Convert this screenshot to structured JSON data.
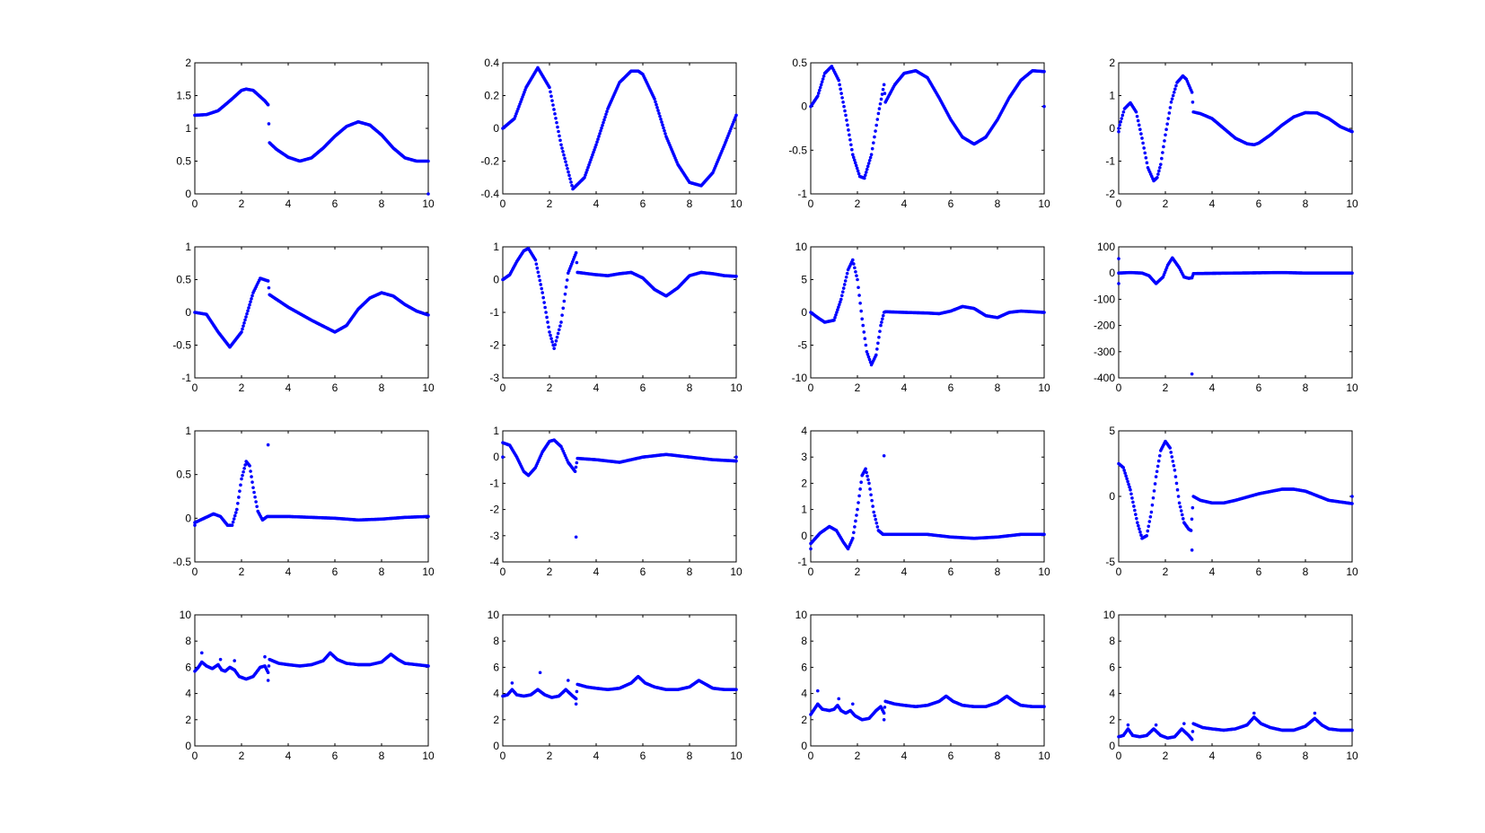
{
  "figure": {
    "marker_color": "#0000ff",
    "axes_color": "#000000",
    "background": "#ffffff"
  },
  "chart_data": [
    {
      "type": "scatter",
      "subplot": [
        1,
        1
      ],
      "xlim": [
        0,
        10
      ],
      "ylim": [
        0,
        2
      ],
      "xticks": [
        "0",
        "2",
        "4",
        "6",
        "8",
        "10"
      ],
      "yticks": [
        "0",
        "0.5",
        "1",
        "1.5",
        "2"
      ],
      "x": [
        0,
        0.5,
        1,
        1.5,
        2,
        2.2,
        2.5,
        3,
        3.14,
        3.2,
        3.5,
        4,
        4.5,
        5,
        5.5,
        6,
        6.5,
        7,
        7.5,
        8,
        8.5,
        9,
        9.5,
        10
      ],
      "y": [
        1.2,
        1.21,
        1.27,
        1.42,
        1.58,
        1.6,
        1.58,
        1.42,
        1.36,
        0.78,
        0.68,
        0.56,
        0.5,
        0.55,
        0.7,
        0.88,
        1.03,
        1.1,
        1.05,
        0.9,
        0.7,
        0.55,
        0.5,
        0.5
      ],
      "outliers": [
        [
          10,
          0
        ]
      ]
    },
    {
      "type": "scatter",
      "subplot": [
        1,
        2
      ],
      "xlim": [
        0,
        10
      ],
      "ylim": [
        -0.4,
        0.4
      ],
      "xticks": [
        "0",
        "2",
        "4",
        "6",
        "8",
        "10"
      ],
      "yticks": [
        "-0.4",
        "-0.2",
        "0",
        "0.2",
        "0.4"
      ],
      "x": [
        0,
        0.5,
        1,
        1.5,
        2,
        2.5,
        3,
        3.5,
        4,
        4.5,
        5,
        5.5,
        5.8,
        6,
        6.5,
        7,
        7.5,
        8,
        8.5,
        9,
        9.5,
        10
      ],
      "y": [
        0,
        0.06,
        0.25,
        0.37,
        0.25,
        -0.1,
        -0.37,
        -0.3,
        -0.1,
        0.12,
        0.28,
        0.35,
        0.35,
        0.33,
        0.18,
        -0.05,
        -0.22,
        -0.33,
        -0.35,
        -0.27,
        -0.1,
        0.08
      ],
      "outliers": []
    },
    {
      "type": "scatter",
      "subplot": [
        1,
        3
      ],
      "xlim": [
        0,
        10
      ],
      "ylim": [
        -1,
        0.5
      ],
      "xticks": [
        "0",
        "2",
        "4",
        "6",
        "8",
        "10"
      ],
      "yticks": [
        "-1",
        "-0.5",
        "0",
        "0.5"
      ],
      "x": [
        0,
        0.3,
        0.6,
        0.9,
        1.2,
        1.5,
        1.8,
        2.1,
        2.3,
        2.6,
        2.9,
        3.14,
        3.2,
        3.6,
        4,
        4.5,
        5,
        5.5,
        6,
        6.5,
        7,
        7.5,
        8,
        8.5,
        9,
        9.5,
        10
      ],
      "y": [
        0,
        0.12,
        0.38,
        0.46,
        0.3,
        -0.1,
        -0.55,
        -0.8,
        -0.82,
        -0.55,
        -0.08,
        0.25,
        0.05,
        0.25,
        0.38,
        0.41,
        0.33,
        0.1,
        -0.15,
        -0.35,
        -0.43,
        -0.35,
        -0.15,
        0.1,
        0.3,
        0.41,
        0.4
      ],
      "outliers": [
        [
          10,
          0
        ]
      ]
    },
    {
      "type": "scatter",
      "subplot": [
        1,
        4
      ],
      "xlim": [
        0,
        10
      ],
      "ylim": [
        -2,
        2
      ],
      "xticks": [
        "0",
        "2",
        "4",
        "6",
        "8",
        "10"
      ],
      "yticks": [
        "-2",
        "-1",
        "0",
        "1",
        "2"
      ],
      "x": [
        0,
        0.25,
        0.5,
        0.75,
        1,
        1.25,
        1.5,
        1.65,
        1.8,
        2,
        2.25,
        2.5,
        2.75,
        2.9,
        3.14,
        3.2,
        3.5,
        4,
        4.5,
        5,
        5.5,
        5.8,
        6,
        6.5,
        7,
        7.5,
        8,
        8.5,
        9,
        9.5,
        10
      ],
      "y": [
        0,
        0.6,
        0.78,
        0.5,
        -0.3,
        -1.2,
        -1.6,
        -1.5,
        -1.1,
        -0.2,
        0.8,
        1.4,
        1.6,
        1.5,
        1.1,
        0.5,
        0.45,
        0.3,
        0,
        -0.3,
        -0.47,
        -0.5,
        -0.45,
        -0.2,
        0.1,
        0.35,
        0.48,
        0.47,
        0.3,
        0.05,
        -0.1
      ],
      "outliers": [
        [
          0,
          -0.1
        ]
      ]
    },
    {
      "type": "scatter",
      "subplot": [
        2,
        1
      ],
      "xlim": [
        0,
        10
      ],
      "ylim": [
        -1,
        1
      ],
      "xticks": [
        "0",
        "2",
        "4",
        "6",
        "8",
        "10"
      ],
      "yticks": [
        "-1",
        "-0.5",
        "0",
        "0.5",
        "1"
      ],
      "x": [
        0,
        0.5,
        1,
        1.5,
        2,
        2.5,
        2.8,
        3.14,
        3.2,
        4,
        5,
        6,
        6.5,
        7,
        7.5,
        8,
        8.5,
        9,
        9.5,
        10
      ],
      "y": [
        0,
        -0.03,
        -0.3,
        -0.53,
        -0.3,
        0.3,
        0.52,
        0.48,
        0.27,
        0.08,
        -0.12,
        -0.3,
        -0.2,
        0.05,
        0.22,
        0.3,
        0.25,
        0.12,
        0.02,
        -0.04
      ],
      "outliers": []
    },
    {
      "type": "scatter",
      "subplot": [
        2,
        2
      ],
      "xlim": [
        0,
        10
      ],
      "ylim": [
        -3,
        1
      ],
      "xticks": [
        "0",
        "2",
        "4",
        "6",
        "8",
        "10"
      ],
      "yticks": [
        "-3",
        "-2",
        "-1",
        "0",
        "1"
      ],
      "x": [
        0,
        0.3,
        0.6,
        0.9,
        1.1,
        1.4,
        1.7,
        2,
        2.2,
        2.5,
        2.8,
        3.14,
        3.2,
        4,
        4.5,
        5,
        5.5,
        6,
        6.5,
        7,
        7.5,
        8,
        8.5,
        9,
        9.5,
        10
      ],
      "y": [
        0,
        0.15,
        0.55,
        0.88,
        0.95,
        0.6,
        -0.4,
        -1.6,
        -2.1,
        -1.3,
        0.2,
        0.82,
        0.22,
        0.15,
        0.12,
        0.18,
        0.22,
        0.05,
        -0.3,
        -0.5,
        -0.25,
        0.12,
        0.22,
        0.18,
        0.12,
        0.1
      ],
      "outliers": []
    },
    {
      "type": "scatter",
      "subplot": [
        2,
        3
      ],
      "xlim": [
        0,
        10
      ],
      "ylim": [
        -10,
        10
      ],
      "xticks": [
        "0",
        "2",
        "4",
        "6",
        "8",
        "10"
      ],
      "yticks": [
        "-10",
        "-5",
        "0",
        "5",
        "10"
      ],
      "x": [
        0,
        0.3,
        0.6,
        1,
        1.3,
        1.6,
        1.8,
        2,
        2.2,
        2.4,
        2.6,
        2.8,
        3,
        3.14,
        3.2,
        4,
        5,
        5.5,
        6,
        6.5,
        7,
        7.5,
        8,
        8.5,
        9,
        9.5,
        10
      ],
      "y": [
        0,
        -0.8,
        -1.5,
        -1.2,
        2,
        6.5,
        8,
        5,
        -1,
        -6,
        -8,
        -6.5,
        -2,
        0,
        0.1,
        0,
        -0.1,
        -0.2,
        0.2,
        0.9,
        0.6,
        -0.5,
        -0.8,
        0,
        0.2,
        0.1,
        0
      ],
      "outliers": []
    },
    {
      "type": "scatter",
      "subplot": [
        2,
        4
      ],
      "xlim": [
        0,
        10
      ],
      "ylim": [
        -400,
        100
      ],
      "xticks": [
        "0",
        "2",
        "4",
        "6",
        "8",
        "10"
      ],
      "yticks": [
        "-400",
        "-300",
        "-200",
        "-100",
        "0",
        "100"
      ],
      "x": [
        0,
        0.5,
        1,
        1.3,
        1.6,
        1.9,
        2.1,
        2.3,
        2.6,
        2.8,
        3,
        3.14,
        3.2,
        4,
        5,
        6,
        7,
        8,
        9,
        10
      ],
      "y": [
        0,
        2,
        0,
        -10,
        -40,
        -15,
        30,
        58,
        20,
        -15,
        -20,
        -18,
        -2,
        -1,
        0,
        1,
        2,
        0,
        0,
        0
      ],
      "outliers": [
        [
          0,
          55
        ],
        [
          0,
          -40
        ],
        [
          3.14,
          -385
        ]
      ]
    },
    {
      "type": "scatter",
      "subplot": [
        3,
        1
      ],
      "xlim": [
        0,
        10
      ],
      "ylim": [
        -0.5,
        1
      ],
      "xticks": [
        "0",
        "2",
        "4",
        "6",
        "8",
        "10"
      ],
      "yticks": [
        "-0.5",
        "0",
        "0.5",
        "1"
      ],
      "x": [
        0,
        0.4,
        0.8,
        1.1,
        1.4,
        1.6,
        1.8,
        2,
        2.2,
        2.35,
        2.5,
        2.7,
        2.9,
        3.1,
        3.2,
        4,
        5,
        6,
        7,
        8,
        9,
        10
      ],
      "y": [
        -0.05,
        0,
        0.05,
        0.02,
        -0.08,
        -0.08,
        0.1,
        0.45,
        0.65,
        0.6,
        0.35,
        0.08,
        -0.02,
        0.02,
        0.02,
        0.02,
        0.01,
        0,
        -0.02,
        -0.01,
        0.01,
        0.02
      ],
      "outliers": [
        [
          0,
          -0.08
        ],
        [
          3.14,
          0.84
        ]
      ]
    },
    {
      "type": "scatter",
      "subplot": [
        3,
        2
      ],
      "xlim": [
        0,
        10
      ],
      "ylim": [
        -4,
        1
      ],
      "xticks": [
        "0",
        "2",
        "4",
        "6",
        "8",
        "10"
      ],
      "yticks": [
        "-4",
        "-3",
        "-2",
        "-1",
        "0",
        "1"
      ],
      "x": [
        0,
        0.3,
        0.6,
        0.9,
        1.1,
        1.4,
        1.7,
        2,
        2.2,
        2.5,
        2.8,
        3.1,
        3.2,
        4,
        5,
        6,
        7,
        8,
        9,
        10
      ],
      "y": [
        0.55,
        0.45,
        0,
        -0.55,
        -0.7,
        -0.4,
        0.2,
        0.6,
        0.65,
        0.4,
        -0.2,
        -0.55,
        -0.05,
        -0.1,
        -0.2,
        0,
        0.1,
        0,
        -0.1,
        -0.15
      ],
      "outliers": [
        [
          0,
          0
        ],
        [
          3.14,
          -3.05
        ],
        [
          10,
          0
        ]
      ]
    },
    {
      "type": "scatter",
      "subplot": [
        3,
        3
      ],
      "xlim": [
        0,
        10
      ],
      "ylim": [
        -1,
        4
      ],
      "xticks": [
        "0",
        "2",
        "4",
        "6",
        "8",
        "10"
      ],
      "yticks": [
        "-1",
        "0",
        "1",
        "2",
        "3",
        "4"
      ],
      "x": [
        0,
        0.4,
        0.8,
        1.1,
        1.4,
        1.6,
        1.8,
        2,
        2.2,
        2.35,
        2.5,
        2.7,
        2.9,
        3.1,
        3.2,
        4,
        5,
        6,
        7,
        8,
        9,
        10
      ],
      "y": [
        -0.3,
        0.1,
        0.35,
        0.2,
        -0.25,
        -0.5,
        -0.1,
        1,
        2.3,
        2.55,
        2,
        0.9,
        0.2,
        0.05,
        0.05,
        0.05,
        0.05,
        -0.05,
        -0.1,
        -0.05,
        0.05,
        0.05
      ],
      "outliers": [
        [
          0,
          -0.5
        ],
        [
          3.14,
          3.05
        ]
      ]
    },
    {
      "type": "scatter",
      "subplot": [
        3,
        4
      ],
      "xlim": [
        0,
        10
      ],
      "ylim": [
        -5,
        5
      ],
      "xticks": [
        "0",
        "2",
        "4",
        "6",
        "8",
        "10"
      ],
      "yticks": [
        "-5",
        "0",
        "5"
      ],
      "x": [
        0,
        0.2,
        0.5,
        0.8,
        1,
        1.2,
        1.4,
        1.6,
        1.8,
        2,
        2.2,
        2.4,
        2.6,
        2.8,
        3,
        3.1,
        3.2,
        3.5,
        4,
        4.5,
        5,
        6,
        7,
        7.5,
        8,
        9,
        10
      ],
      "y": [
        2.5,
        2.2,
        0.5,
        -2,
        -3.2,
        -3,
        -1.2,
        1.5,
        3.5,
        4.2,
        3.7,
        2,
        -0.5,
        -2,
        -2.5,
        -2.6,
        0,
        -0.3,
        -0.5,
        -0.5,
        -0.3,
        0.2,
        0.55,
        0.55,
        0.4,
        -0.3,
        -0.55
      ],
      "outliers": [
        [
          3.14,
          -4.1
        ],
        [
          10,
          0
        ]
      ]
    },
    {
      "type": "scatter",
      "subplot": [
        4,
        1
      ],
      "xlim": [
        0,
        10
      ],
      "ylim": [
        0,
        10
      ],
      "xticks": [
        "0",
        "2",
        "4",
        "6",
        "8",
        "10"
      ],
      "yticks": [
        "0",
        "2",
        "4",
        "6",
        "8",
        "10"
      ],
      "x": [
        0,
        0.15,
        0.3,
        0.5,
        0.75,
        1,
        1.15,
        1.3,
        1.5,
        1.7,
        1.9,
        2.2,
        2.5,
        2.8,
        3,
        3.14,
        3.2,
        3.6,
        4,
        4.5,
        5,
        5.5,
        5.8,
        6.1,
        6.5,
        7,
        7.5,
        8,
        8.4,
        8.7,
        9,
        9.5,
        10
      ],
      "y": [
        5.7,
        6,
        6.4,
        6.1,
        5.9,
        6.2,
        5.8,
        5.7,
        6,
        5.8,
        5.3,
        5.1,
        5.3,
        6,
        6.1,
        5.6,
        6.6,
        6.3,
        6.2,
        6.1,
        6.2,
        6.5,
        7.1,
        6.6,
        6.3,
        6.2,
        6.2,
        6.4,
        7,
        6.6,
        6.3,
        6.2,
        6.1
      ],
      "outliers": [
        [
          0.3,
          7.1
        ],
        [
          1.1,
          6.6
        ],
        [
          1.7,
          6.5
        ],
        [
          3,
          6.8
        ],
        [
          3.14,
          5
        ]
      ]
    },
    {
      "type": "scatter",
      "subplot": [
        4,
        2
      ],
      "xlim": [
        0,
        10
      ],
      "ylim": [
        0,
        10
      ],
      "xticks": [
        "0",
        "2",
        "4",
        "6",
        "8",
        "10"
      ],
      "yticks": [
        "0",
        "2",
        "4",
        "6",
        "8",
        "10"
      ],
      "x": [
        0,
        0.2,
        0.4,
        0.6,
        0.9,
        1.2,
        1.5,
        1.8,
        2.1,
        2.4,
        2.7,
        3,
        3.14,
        3.2,
        3.6,
        4,
        4.5,
        5,
        5.5,
        5.8,
        6.1,
        6.5,
        7,
        7.5,
        8,
        8.4,
        8.7,
        9,
        9.5,
        10
      ],
      "y": [
        3.8,
        3.9,
        4.3,
        3.9,
        3.8,
        3.9,
        4.3,
        3.9,
        3.7,
        3.8,
        4.3,
        3.8,
        3.6,
        4.7,
        4.5,
        4.4,
        4.3,
        4.4,
        4.8,
        5.3,
        4.8,
        4.5,
        4.3,
        4.3,
        4.5,
        5,
        4.7,
        4.4,
        4.3,
        4.3
      ],
      "outliers": [
        [
          0.4,
          4.8
        ],
        [
          1.6,
          5.6
        ],
        [
          2.8,
          5
        ],
        [
          3.14,
          3.2
        ]
      ]
    },
    {
      "type": "scatter",
      "subplot": [
        4,
        3
      ],
      "xlim": [
        0,
        10
      ],
      "ylim": [
        0,
        10
      ],
      "xticks": [
        "0",
        "2",
        "4",
        "6",
        "8",
        "10"
      ],
      "yticks": [
        "0",
        "2",
        "4",
        "6",
        "8",
        "10"
      ],
      "x": [
        0,
        0.15,
        0.3,
        0.5,
        0.8,
        1,
        1.15,
        1.3,
        1.5,
        1.7,
        1.9,
        2.2,
        2.5,
        2.8,
        3,
        3.14,
        3.2,
        3.6,
        4,
        4.5,
        5,
        5.5,
        5.8,
        6.1,
        6.5,
        7,
        7.5,
        8,
        8.4,
        8.7,
        9,
        9.5,
        10
      ],
      "y": [
        2.4,
        2.8,
        3.2,
        2.8,
        2.7,
        2.8,
        3.1,
        2.7,
        2.5,
        2.7,
        2.3,
        2,
        2.1,
        2.7,
        3,
        2.5,
        3.4,
        3.2,
        3.1,
        3,
        3.1,
        3.4,
        3.8,
        3.4,
        3.1,
        3,
        3,
        3.3,
        3.8,
        3.4,
        3.1,
        3,
        3
      ],
      "outliers": [
        [
          0.3,
          4.2
        ],
        [
          1.2,
          3.6
        ],
        [
          1.8,
          3.2
        ],
        [
          3.14,
          2
        ]
      ]
    },
    {
      "type": "scatter",
      "subplot": [
        4,
        4
      ],
      "xlim": [
        0,
        10
      ],
      "ylim": [
        0,
        10
      ],
      "xticks": [
        "0",
        "2",
        "4",
        "6",
        "8",
        "10"
      ],
      "yticks": [
        "0",
        "2",
        "4",
        "6",
        "8",
        "10"
      ],
      "x": [
        0,
        0.2,
        0.4,
        0.6,
        0.9,
        1.2,
        1.5,
        1.8,
        2.1,
        2.4,
        2.7,
        3,
        3.14,
        3.2,
        3.6,
        4,
        4.5,
        5,
        5.5,
        5.8,
        6.1,
        6.5,
        7,
        7.5,
        8,
        8.4,
        8.7,
        9,
        9.5,
        10
      ],
      "y": [
        0.7,
        0.8,
        1.3,
        0.8,
        0.7,
        0.8,
        1.3,
        0.8,
        0.6,
        0.7,
        1.3,
        0.8,
        0.5,
        1.7,
        1.4,
        1.3,
        1.2,
        1.3,
        1.6,
        2.2,
        1.7,
        1.4,
        1.2,
        1.2,
        1.5,
        2.1,
        1.6,
        1.3,
        1.2,
        1.2
      ],
      "outliers": [
        [
          0.4,
          1.6
        ],
        [
          1.6,
          1.6
        ],
        [
          2.8,
          1.7
        ],
        [
          5.8,
          2.5
        ],
        [
          8.4,
          2.5
        ]
      ]
    }
  ]
}
